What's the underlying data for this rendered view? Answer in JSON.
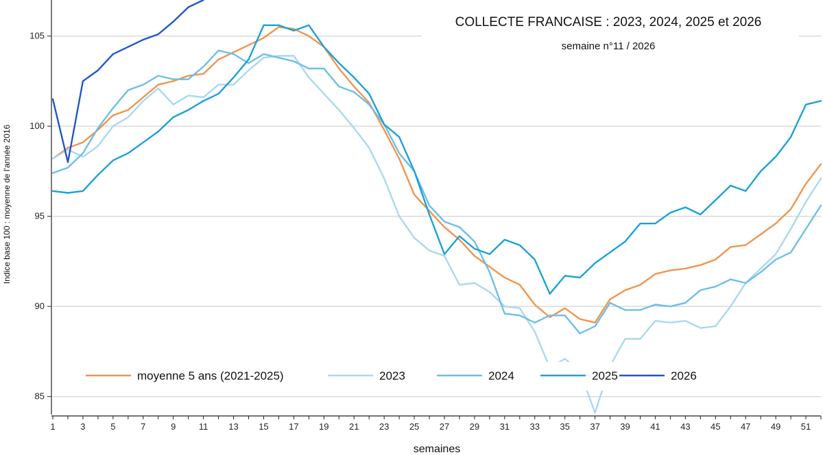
{
  "chart_data": {
    "type": "line",
    "title": "COLLECTE FRANCAISE : 2023, 2024, 2025 et 2026",
    "subtitle": "semaine n°11 / 2026",
    "xlabel": "semaines",
    "ylabel": "Indice base 100 : moyenne de l'année 2016",
    "xlim": [
      1,
      52
    ],
    "ylim": [
      84,
      107
    ],
    "xticks": [
      1,
      3,
      5,
      7,
      9,
      11,
      13,
      15,
      17,
      19,
      21,
      23,
      25,
      27,
      29,
      31,
      33,
      35,
      37,
      39,
      41,
      43,
      45,
      47,
      49,
      51
    ],
    "yticks": [
      85,
      90,
      95,
      100,
      105
    ],
    "grid": "horizontal",
    "legend_position": "bottom",
    "series": [
      {
        "name": "moyenne 5 ans (2021-2025)",
        "color": "#f0944d",
        "values": [
          98.2,
          98.8,
          99.1,
          99.8,
          100.6,
          100.9,
          101.6,
          102.3,
          102.5,
          102.8,
          102.9,
          103.7,
          104.1,
          104.5,
          104.9,
          105.5,
          105.4,
          105.0,
          104.4,
          103.2,
          102.2,
          101.3,
          99.8,
          98.2,
          96.2,
          95.3,
          94.4,
          93.7,
          92.8,
          92.2,
          91.6,
          91.2,
          90.1,
          89.4,
          89.9,
          89.3,
          89.1,
          90.4,
          90.9,
          91.2,
          91.8,
          92.0,
          92.1,
          92.3,
          92.6,
          93.3,
          93.4,
          94.0,
          94.6,
          95.4,
          96.8,
          97.9
        ]
      },
      {
        "name": "2023",
        "color": "#a9d8ef",
        "values": [
          98.2,
          98.7,
          98.3,
          98.9,
          100.0,
          100.5,
          101.4,
          102.1,
          101.2,
          101.7,
          101.6,
          102.3,
          102.3,
          103.1,
          103.8,
          103.9,
          103.9,
          102.7,
          101.8,
          100.9,
          99.9,
          98.8,
          97.1,
          95.0,
          93.8,
          93.1,
          92.8,
          91.2,
          91.3,
          90.8,
          90.0,
          89.9,
          88.6,
          86.6,
          87.1,
          86.4,
          84.1,
          86.7,
          88.2,
          88.2,
          89.2,
          89.1,
          89.2,
          88.8,
          88.9,
          90.0,
          91.3,
          92.1,
          92.9,
          94.3,
          95.8,
          97.1
        ]
      },
      {
        "name": "2024",
        "color": "#6cbfe6",
        "values": [
          97.4,
          97.7,
          98.5,
          99.9,
          101.0,
          102.0,
          102.3,
          102.8,
          102.6,
          102.6,
          103.3,
          104.2,
          104.0,
          103.5,
          104.0,
          103.8,
          103.6,
          103.2,
          103.2,
          102.2,
          101.9,
          101.2,
          100.1,
          98.5,
          97.5,
          95.6,
          94.7,
          94.4,
          93.6,
          91.9,
          89.6,
          89.5,
          89.1,
          89.5,
          89.5,
          88.5,
          88.9,
          90.2,
          89.8,
          89.8,
          90.1,
          90.0,
          90.2,
          90.9,
          91.1,
          91.5,
          91.3,
          91.9,
          92.6,
          93.0,
          94.3,
          95.6
        ]
      },
      {
        "name": "2025",
        "color": "#1ba1d6",
        "values": [
          96.4,
          96.3,
          96.4,
          97.3,
          98.1,
          98.5,
          99.1,
          99.7,
          100.5,
          100.9,
          101.4,
          101.8,
          102.7,
          103.7,
          105.6,
          105.6,
          105.3,
          105.6,
          104.4,
          103.5,
          102.7,
          101.8,
          100.1,
          99.4,
          97.5,
          95.1,
          92.9,
          93.9,
          93.2,
          92.9,
          93.7,
          93.4,
          92.6,
          90.7,
          91.7,
          91.6,
          92.4,
          93.0,
          93.6,
          94.6,
          94.6,
          95.2,
          95.5,
          95.1,
          95.9,
          96.7,
          96.4,
          97.5,
          98.3,
          99.4,
          101.2,
          101.4
        ]
      },
      {
        "name": "2026",
        "color": "#1f57c6",
        "values": [
          101.5,
          98.0,
          102.5,
          103.1,
          104.0,
          104.4,
          104.8,
          105.1,
          105.8,
          106.6,
          107.0
        ]
      }
    ]
  }
}
